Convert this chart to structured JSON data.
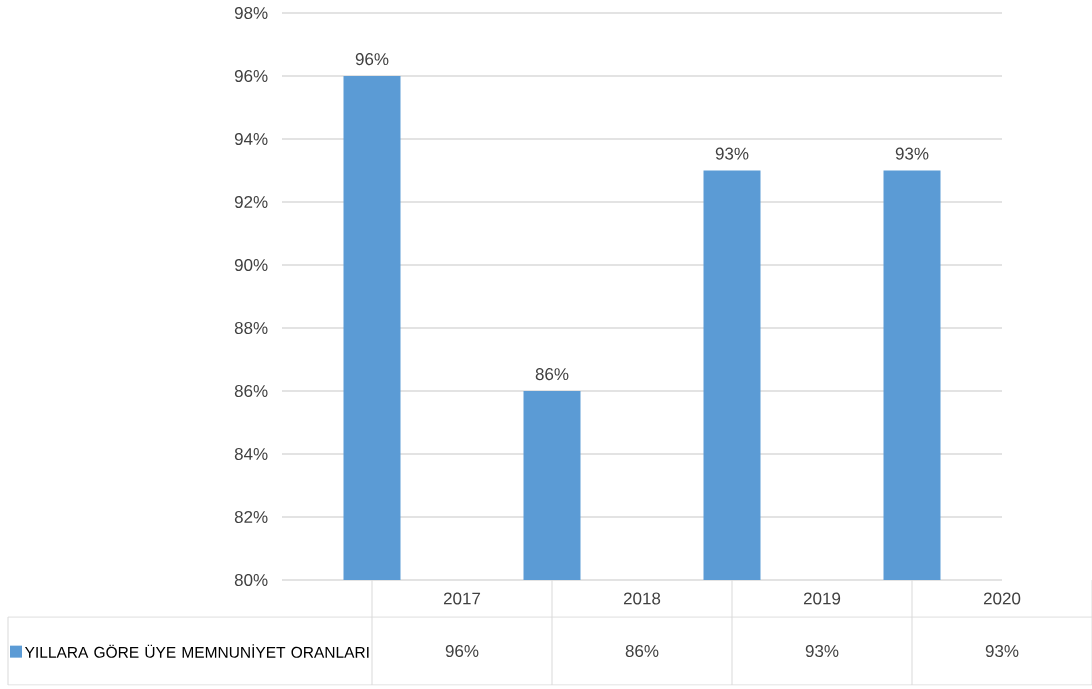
{
  "chart_data": {
    "type": "bar",
    "categories": [
      "2017",
      "2018",
      "2019",
      "2020"
    ],
    "series": [
      {
        "name": "YILLARA GÖRE ÜYE MEMNUNİYET ORANLARI",
        "color": "#5b9bd5",
        "values": [
          96,
          86,
          93,
          93
        ],
        "value_labels": [
          "96%",
          "86%",
          "93%",
          "93%"
        ]
      }
    ],
    "ylim": [
      80,
      98
    ],
    "yticks": [
      {
        "value": 80,
        "label": "80%"
      },
      {
        "value": 82,
        "label": "82%"
      },
      {
        "value": 84,
        "label": "84%"
      },
      {
        "value": 86,
        "label": "86%"
      },
      {
        "value": 88,
        "label": "88%"
      },
      {
        "value": 90,
        "label": "90%"
      },
      {
        "value": 92,
        "label": "92%"
      },
      {
        "value": 94,
        "label": "94%"
      },
      {
        "value": 96,
        "label": "96%"
      },
      {
        "value": 98,
        "label": "98%"
      }
    ],
    "grid": "y",
    "legend": "bottom"
  }
}
